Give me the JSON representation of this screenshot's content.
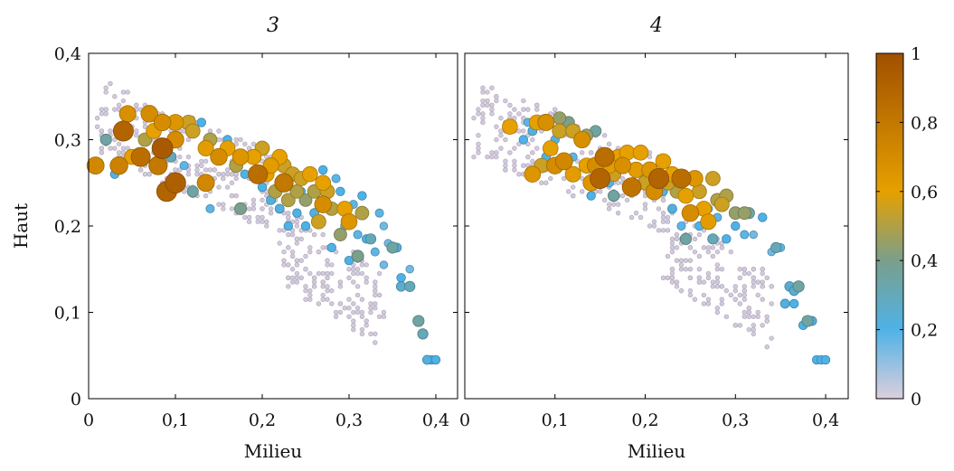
{
  "chart_data": [
    {
      "type": "scatter",
      "title": "3",
      "xlabel": "Milieu",
      "ylabel": "Haut",
      "xlim": [
        0,
        0.425
      ],
      "ylim": [
        0,
        0.4
      ],
      "xticks": [
        "0",
        "0,1",
        "0,2",
        "0,3",
        "0,4"
      ],
      "yticks": [
        "0",
        "0,1",
        "0,2",
        "0,3",
        "0,4"
      ],
      "grid": false,
      "points": [
        {
          "x": 0.008,
          "y": 0.27,
          "c": 0.72
        },
        {
          "x": 0.035,
          "y": 0.27,
          "c": 0.75
        },
        {
          "x": 0.04,
          "y": 0.31,
          "c": 0.9
        },
        {
          "x": 0.045,
          "y": 0.33,
          "c": 0.68
        },
        {
          "x": 0.06,
          "y": 0.28,
          "c": 0.85
        },
        {
          "x": 0.07,
          "y": 0.33,
          "c": 0.7
        },
        {
          "x": 0.075,
          "y": 0.31,
          "c": 0.6
        },
        {
          "x": 0.08,
          "y": 0.27,
          "c": 0.8
        },
        {
          "x": 0.085,
          "y": 0.29,
          "c": 0.95
        },
        {
          "x": 0.085,
          "y": 0.32,
          "c": 0.7
        },
        {
          "x": 0.09,
          "y": 0.24,
          "c": 0.9
        },
        {
          "x": 0.1,
          "y": 0.25,
          "c": 0.92
        },
        {
          "x": 0.1,
          "y": 0.3,
          "c": 0.7
        },
        {
          "x": 0.1,
          "y": 0.32,
          "c": 0.65
        },
        {
          "x": 0.115,
          "y": 0.32,
          "c": 0.55
        },
        {
          "x": 0.12,
          "y": 0.31,
          "c": 0.55
        },
        {
          "x": 0.135,
          "y": 0.25,
          "c": 0.72
        },
        {
          "x": 0.135,
          "y": 0.29,
          "c": 0.62
        },
        {
          "x": 0.14,
          "y": 0.3,
          "c": 0.5
        },
        {
          "x": 0.15,
          "y": 0.28,
          "c": 0.7
        },
        {
          "x": 0.16,
          "y": 0.29,
          "c": 0.6
        },
        {
          "x": 0.17,
          "y": 0.27,
          "c": 0.5
        },
        {
          "x": 0.175,
          "y": 0.28,
          "c": 0.65
        },
        {
          "x": 0.19,
          "y": 0.28,
          "c": 0.6
        },
        {
          "x": 0.195,
          "y": 0.26,
          "c": 0.85
        },
        {
          "x": 0.2,
          "y": 0.29,
          "c": 0.55
        },
        {
          "x": 0.205,
          "y": 0.26,
          "c": 0.6
        },
        {
          "x": 0.21,
          "y": 0.27,
          "c": 0.62
        },
        {
          "x": 0.215,
          "y": 0.24,
          "c": 0.5
        },
        {
          "x": 0.22,
          "y": 0.28,
          "c": 0.6
        },
        {
          "x": 0.225,
          "y": 0.25,
          "c": 0.8
        },
        {
          "x": 0.225,
          "y": 0.27,
          "c": 0.55
        },
        {
          "x": 0.23,
          "y": 0.23,
          "c": 0.5
        },
        {
          "x": 0.235,
          "y": 0.26,
          "c": 0.55
        },
        {
          "x": 0.24,
          "y": 0.24,
          "c": 0.5
        },
        {
          "x": 0.245,
          "y": 0.255,
          "c": 0.55
        },
        {
          "x": 0.25,
          "y": 0.23,
          "c": 0.45
        },
        {
          "x": 0.255,
          "y": 0.26,
          "c": 0.6
        },
        {
          "x": 0.26,
          "y": 0.24,
          "c": 0.5
        },
        {
          "x": 0.265,
          "y": 0.205,
          "c": 0.55
        },
        {
          "x": 0.27,
          "y": 0.225,
          "c": 0.7
        },
        {
          "x": 0.27,
          "y": 0.25,
          "c": 0.6
        },
        {
          "x": 0.275,
          "y": 0.24,
          "c": 0.55
        },
        {
          "x": 0.28,
          "y": 0.22,
          "c": 0.5
        },
        {
          "x": 0.29,
          "y": 0.19,
          "c": 0.45
        },
        {
          "x": 0.295,
          "y": 0.22,
          "c": 0.6
        },
        {
          "x": 0.3,
          "y": 0.205,
          "c": 0.65
        },
        {
          "x": 0.31,
          "y": 0.165,
          "c": 0.4
        },
        {
          "x": 0.315,
          "y": 0.215,
          "c": 0.5
        },
        {
          "x": 0.05,
          "y": 0.28,
          "c": 0.6
        },
        {
          "x": 0.065,
          "y": 0.3,
          "c": 0.5
        },
        {
          "x": 0.02,
          "y": 0.3,
          "c": 0.35
        },
        {
          "x": 0.175,
          "y": 0.22,
          "c": 0.4
        },
        {
          "x": 0.12,
          "y": 0.24,
          "c": 0.35
        },
        {
          "x": 0.095,
          "y": 0.28,
          "c": 0.3
        },
        {
          "x": 0.35,
          "y": 0.175,
          "c": 0.35
        },
        {
          "x": 0.38,
          "y": 0.09,
          "c": 0.35
        },
        {
          "x": 0.385,
          "y": 0.075,
          "c": 0.3
        },
        {
          "x": 0.325,
          "y": 0.185,
          "c": 0.3
        },
        {
          "x": 0.36,
          "y": 0.13,
          "c": 0.25
        },
        {
          "x": 0.37,
          "y": 0.13,
          "c": 0.3
        },
        {
          "x": 0.395,
          "y": 0.045,
          "c": 0.2
        },
        {
          "x": 0.39,
          "y": 0.045,
          "c": 0.22
        },
        {
          "x": 0.4,
          "y": 0.045,
          "c": 0.2
        },
        {
          "x": 0.36,
          "y": 0.14,
          "c": 0.2
        },
        {
          "x": 0.355,
          "y": 0.175,
          "c": 0.22
        },
        {
          "x": 0.32,
          "y": 0.185,
          "c": 0.2
        },
        {
          "x": 0.3,
          "y": 0.16,
          "c": 0.2
        },
        {
          "x": 0.31,
          "y": 0.19,
          "c": 0.18
        },
        {
          "x": 0.33,
          "y": 0.17,
          "c": 0.18
        },
        {
          "x": 0.34,
          "y": 0.155,
          "c": 0.15
        },
        {
          "x": 0.28,
          "y": 0.175,
          "c": 0.2
        },
        {
          "x": 0.25,
          "y": 0.2,
          "c": 0.2
        },
        {
          "x": 0.26,
          "y": 0.215,
          "c": 0.22
        },
        {
          "x": 0.24,
          "y": 0.215,
          "c": 0.2
        },
        {
          "x": 0.22,
          "y": 0.22,
          "c": 0.22
        },
        {
          "x": 0.23,
          "y": 0.2,
          "c": 0.2
        },
        {
          "x": 0.21,
          "y": 0.23,
          "c": 0.22
        },
        {
          "x": 0.2,
          "y": 0.245,
          "c": 0.2
        },
        {
          "x": 0.18,
          "y": 0.26,
          "c": 0.2
        },
        {
          "x": 0.16,
          "y": 0.3,
          "c": 0.2
        },
        {
          "x": 0.14,
          "y": 0.22,
          "c": 0.18
        },
        {
          "x": 0.13,
          "y": 0.32,
          "c": 0.2
        },
        {
          "x": 0.11,
          "y": 0.27,
          "c": 0.18
        },
        {
          "x": 0.03,
          "y": 0.26,
          "c": 0.2
        },
        {
          "x": 0.27,
          "y": 0.265,
          "c": 0.2
        },
        {
          "x": 0.285,
          "y": 0.255,
          "c": 0.18
        },
        {
          "x": 0.29,
          "y": 0.24,
          "c": 0.2
        },
        {
          "x": 0.305,
          "y": 0.225,
          "c": 0.18
        },
        {
          "x": 0.315,
          "y": 0.235,
          "c": 0.2
        },
        {
          "x": 0.335,
          "y": 0.215,
          "c": 0.18
        },
        {
          "x": 0.34,
          "y": 0.2,
          "c": 0.15
        },
        {
          "x": 0.37,
          "y": 0.15,
          "c": 0.15
        },
        {
          "x": 0.345,
          "y": 0.18,
          "c": 0.15
        },
        {
          "x": 0.295,
          "y": 0.2,
          "c": 0.18
        },
        {
          "x": 0.245,
          "y": 0.24,
          "c": 0.18
        }
      ]
    },
    {
      "type": "scatter",
      "title": "4",
      "xlabel": "Milieu",
      "ylabel": "",
      "xlim": [
        0,
        0.425
      ],
      "ylim": [
        0,
        0.4
      ],
      "xticks": [
        "0",
        "0,1",
        "0,2",
        "0,3",
        "0,4"
      ],
      "yticks": [
        "",
        "",
        "",
        "",
        ""
      ],
      "grid": false,
      "points": [
        {
          "x": 0.05,
          "y": 0.315,
          "c": 0.6
        },
        {
          "x": 0.075,
          "y": 0.26,
          "c": 0.65
        },
        {
          "x": 0.08,
          "y": 0.32,
          "c": 0.6
        },
        {
          "x": 0.09,
          "y": 0.32,
          "c": 0.68
        },
        {
          "x": 0.1,
          "y": 0.27,
          "c": 0.7
        },
        {
          "x": 0.105,
          "y": 0.31,
          "c": 0.55
        },
        {
          "x": 0.11,
          "y": 0.275,
          "c": 0.72
        },
        {
          "x": 0.12,
          "y": 0.26,
          "c": 0.62
        },
        {
          "x": 0.13,
          "y": 0.3,
          "c": 0.68
        },
        {
          "x": 0.135,
          "y": 0.27,
          "c": 0.6
        },
        {
          "x": 0.14,
          "y": 0.25,
          "c": 0.65
        },
        {
          "x": 0.145,
          "y": 0.27,
          "c": 0.7
        },
        {
          "x": 0.15,
          "y": 0.255,
          "c": 0.9
        },
        {
          "x": 0.155,
          "y": 0.28,
          "c": 0.85
        },
        {
          "x": 0.16,
          "y": 0.27,
          "c": 0.62
        },
        {
          "x": 0.165,
          "y": 0.26,
          "c": 0.55
        },
        {
          "x": 0.17,
          "y": 0.28,
          "c": 0.6
        },
        {
          "x": 0.175,
          "y": 0.27,
          "c": 0.68
        },
        {
          "x": 0.18,
          "y": 0.285,
          "c": 0.6
        },
        {
          "x": 0.185,
          "y": 0.245,
          "c": 0.82
        },
        {
          "x": 0.19,
          "y": 0.265,
          "c": 0.62
        },
        {
          "x": 0.195,
          "y": 0.285,
          "c": 0.6
        },
        {
          "x": 0.2,
          "y": 0.25,
          "c": 0.55
        },
        {
          "x": 0.205,
          "y": 0.265,
          "c": 0.65
        },
        {
          "x": 0.21,
          "y": 0.24,
          "c": 0.7
        },
        {
          "x": 0.215,
          "y": 0.255,
          "c": 0.9
        },
        {
          "x": 0.22,
          "y": 0.275,
          "c": 0.6
        },
        {
          "x": 0.225,
          "y": 0.25,
          "c": 0.55
        },
        {
          "x": 0.23,
          "y": 0.26,
          "c": 0.6
        },
        {
          "x": 0.235,
          "y": 0.24,
          "c": 0.5
        },
        {
          "x": 0.24,
          "y": 0.255,
          "c": 0.85
        },
        {
          "x": 0.245,
          "y": 0.235,
          "c": 0.6
        },
        {
          "x": 0.25,
          "y": 0.215,
          "c": 0.7
        },
        {
          "x": 0.255,
          "y": 0.255,
          "c": 0.65
        },
        {
          "x": 0.26,
          "y": 0.24,
          "c": 0.55
        },
        {
          "x": 0.265,
          "y": 0.22,
          "c": 0.6
        },
        {
          "x": 0.27,
          "y": 0.205,
          "c": 0.62
        },
        {
          "x": 0.275,
          "y": 0.255,
          "c": 0.55
        },
        {
          "x": 0.28,
          "y": 0.23,
          "c": 0.5
        },
        {
          "x": 0.285,
          "y": 0.225,
          "c": 0.55
        },
        {
          "x": 0.29,
          "y": 0.235,
          "c": 0.5
        },
        {
          "x": 0.3,
          "y": 0.215,
          "c": 0.45
        },
        {
          "x": 0.31,
          "y": 0.215,
          "c": 0.45
        },
        {
          "x": 0.085,
          "y": 0.27,
          "c": 0.55
        },
        {
          "x": 0.095,
          "y": 0.29,
          "c": 0.6
        },
        {
          "x": 0.12,
          "y": 0.31,
          "c": 0.55
        },
        {
          "x": 0.105,
          "y": 0.325,
          "c": 0.45
        },
        {
          "x": 0.115,
          "y": 0.32,
          "c": 0.4
        },
        {
          "x": 0.135,
          "y": 0.305,
          "c": 0.45
        },
        {
          "x": 0.145,
          "y": 0.31,
          "c": 0.35
        },
        {
          "x": 0.165,
          "y": 0.235,
          "c": 0.35
        },
        {
          "x": 0.245,
          "y": 0.185,
          "c": 0.35
        },
        {
          "x": 0.275,
          "y": 0.185,
          "c": 0.3
        },
        {
          "x": 0.315,
          "y": 0.215,
          "c": 0.35
        },
        {
          "x": 0.345,
          "y": 0.175,
          "c": 0.3
        },
        {
          "x": 0.37,
          "y": 0.13,
          "c": 0.35
        },
        {
          "x": 0.38,
          "y": 0.09,
          "c": 0.35
        },
        {
          "x": 0.36,
          "y": 0.13,
          "c": 0.25
        },
        {
          "x": 0.365,
          "y": 0.125,
          "c": 0.25
        },
        {
          "x": 0.355,
          "y": 0.11,
          "c": 0.22
        },
        {
          "x": 0.365,
          "y": 0.11,
          "c": 0.2
        },
        {
          "x": 0.385,
          "y": 0.09,
          "c": 0.22
        },
        {
          "x": 0.375,
          "y": 0.085,
          "c": 0.2
        },
        {
          "x": 0.39,
          "y": 0.045,
          "c": 0.2
        },
        {
          "x": 0.395,
          "y": 0.045,
          "c": 0.2
        },
        {
          "x": 0.4,
          "y": 0.045,
          "c": 0.2
        },
        {
          "x": 0.33,
          "y": 0.21,
          "c": 0.2
        },
        {
          "x": 0.3,
          "y": 0.2,
          "c": 0.2
        },
        {
          "x": 0.31,
          "y": 0.19,
          "c": 0.18
        },
        {
          "x": 0.29,
          "y": 0.185,
          "c": 0.2
        },
        {
          "x": 0.26,
          "y": 0.2,
          "c": 0.2
        },
        {
          "x": 0.255,
          "y": 0.215,
          "c": 0.2
        },
        {
          "x": 0.23,
          "y": 0.22,
          "c": 0.22
        },
        {
          "x": 0.22,
          "y": 0.24,
          "c": 0.2
        },
        {
          "x": 0.2,
          "y": 0.26,
          "c": 0.22
        },
        {
          "x": 0.18,
          "y": 0.27,
          "c": 0.2
        },
        {
          "x": 0.16,
          "y": 0.25,
          "c": 0.2
        },
        {
          "x": 0.14,
          "y": 0.235,
          "c": 0.2
        },
        {
          "x": 0.12,
          "y": 0.28,
          "c": 0.18
        },
        {
          "x": 0.1,
          "y": 0.3,
          "c": 0.2
        },
        {
          "x": 0.09,
          "y": 0.28,
          "c": 0.2
        },
        {
          "x": 0.07,
          "y": 0.32,
          "c": 0.18
        },
        {
          "x": 0.065,
          "y": 0.3,
          "c": 0.2
        },
        {
          "x": 0.075,
          "y": 0.31,
          "c": 0.22
        },
        {
          "x": 0.24,
          "y": 0.2,
          "c": 0.18
        },
        {
          "x": 0.27,
          "y": 0.22,
          "c": 0.18
        },
        {
          "x": 0.28,
          "y": 0.21,
          "c": 0.18
        },
        {
          "x": 0.32,
          "y": 0.19,
          "c": 0.15
        },
        {
          "x": 0.34,
          "y": 0.17,
          "c": 0.15
        },
        {
          "x": 0.35,
          "y": 0.175,
          "c": 0.18
        }
      ]
    }
  ],
  "colorbar": {
    "min": 0,
    "max": 1,
    "ticks": [
      "0",
      "0,2",
      "0,4",
      "0,6",
      "0,8",
      "1"
    ],
    "stops": [
      "#dccfdc",
      "#4fb2e6",
      "#7a9f8c",
      "#e6a000",
      "#a05000"
    ]
  }
}
